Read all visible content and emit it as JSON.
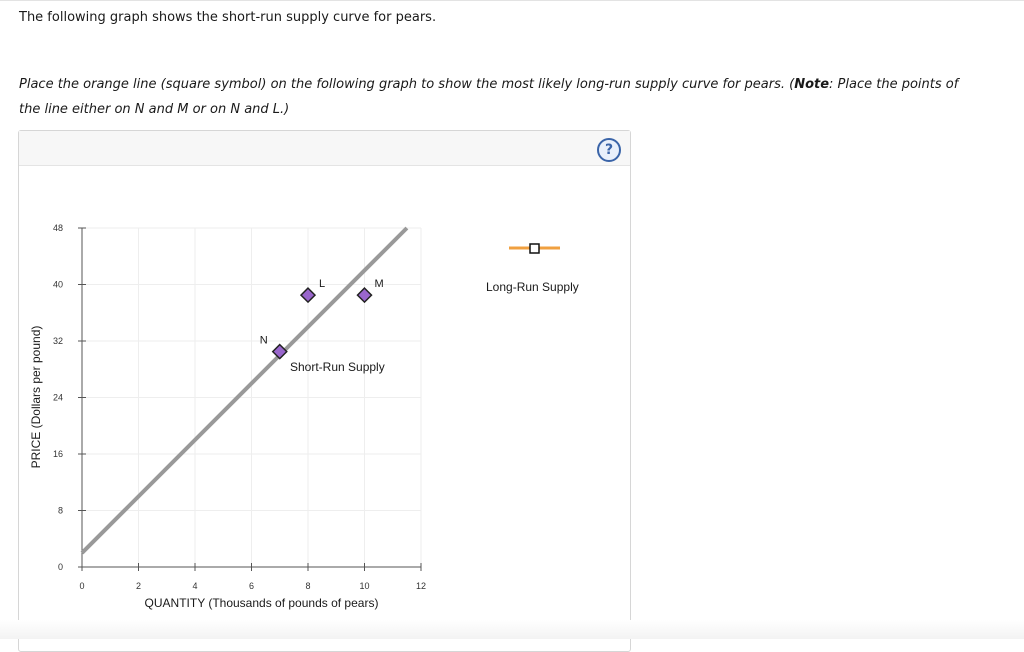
{
  "question": {
    "line1": "The following graph shows the short-run supply curve for pears.",
    "instruction_part1": "Place the orange line (square symbol) on the following graph to show the most likely long-run supply curve for pears. (",
    "note_label": "Note",
    "instruction_part2": ": Place the points of the line either on N and M or on N and L.)"
  },
  "help_label": "?",
  "legend": {
    "label": "Long-Run Supply",
    "color": "#f0a040",
    "icon": "square-marker-icon"
  },
  "chart_data": {
    "type": "line",
    "xlabel": "QUANTITY (Thousands of pounds of pears)",
    "ylabel": "PRICE (Dollars per pound)",
    "xlim": [
      0,
      12
    ],
    "ylim": [
      0,
      48
    ],
    "xticks": [
      0,
      2,
      4,
      6,
      8,
      10,
      12
    ],
    "yticks": [
      0,
      8,
      16,
      24,
      32,
      40,
      48
    ],
    "grid": true,
    "series": [
      {
        "name": "Short-Run Supply",
        "color": "#999999",
        "x": [
          0,
          11.5
        ],
        "y": [
          2,
          48
        ]
      }
    ],
    "points": [
      {
        "label": "L",
        "x": 8,
        "y": 38.5,
        "color": "#9966cc"
      },
      {
        "label": "M",
        "x": 10,
        "y": 38.5,
        "color": "#9966cc"
      },
      {
        "label": "N",
        "x": 7,
        "y": 30.5,
        "color": "#9966cc"
      }
    ]
  }
}
